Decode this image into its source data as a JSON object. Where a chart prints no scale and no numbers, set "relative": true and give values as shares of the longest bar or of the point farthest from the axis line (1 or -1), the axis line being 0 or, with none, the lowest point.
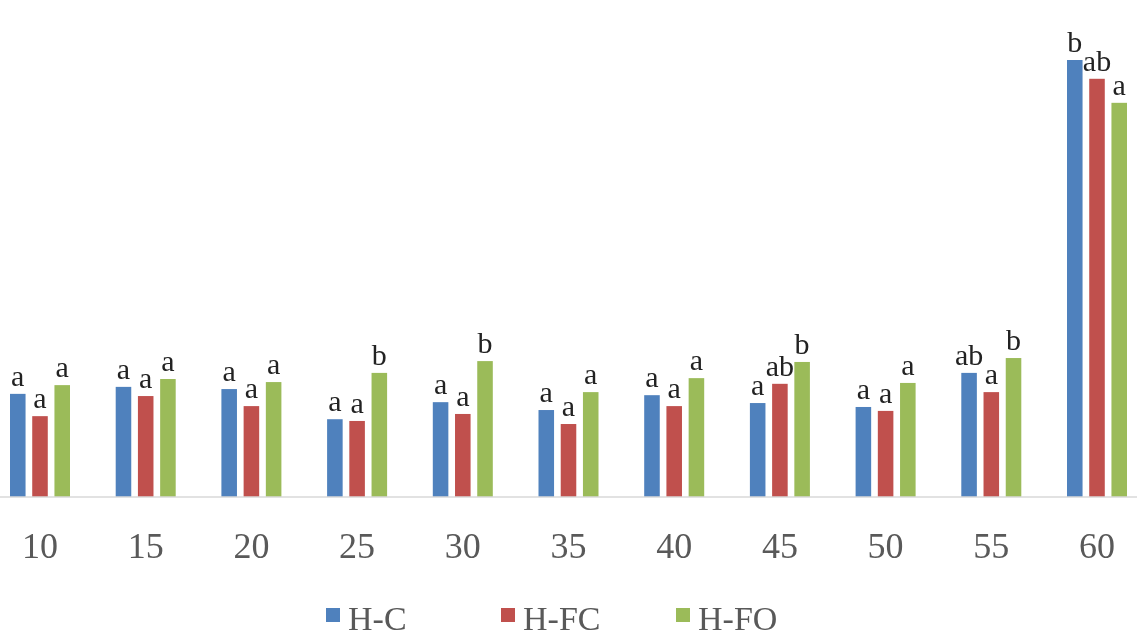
{
  "chart_data": {
    "type": "bar",
    "relative": true,
    "categories": [
      "10",
      "15",
      "20",
      "25",
      "30",
      "35",
      "40",
      "45",
      "50",
      "55",
      "60"
    ],
    "legend": "bottom",
    "series": [
      {
        "name": "H-C",
        "color": "#4f81bd",
        "values": [
          0.236,
          0.252,
          0.247,
          0.178,
          0.217,
          0.199,
          0.233,
          0.215,
          0.206,
          0.284,
          1
        ]
      },
      {
        "name": "H-FC",
        "color": "#c0504d",
        "values": [
          0.185,
          0.231,
          0.208,
          0.174,
          0.19,
          0.167,
          0.208,
          0.259,
          0.197,
          0.24,
          0.957
        ]
      },
      {
        "name": "H-FO",
        "color": "#9bbb59",
        "values": [
          0.256,
          0.27,
          0.263,
          0.284,
          0.311,
          0.24,
          0.272,
          0.309,
          0.261,
          0.318,
          0.902
        ]
      }
    ],
    "annotations": [
      "a",
      "a",
      "a",
      "a",
      "a",
      "a",
      "a",
      "a",
      "a",
      "a",
      "a",
      "b",
      "a",
      "a",
      "b",
      "a",
      "a",
      "a",
      "a",
      "a",
      "a",
      "a",
      "ab",
      "b",
      "a",
      "a",
      "a",
      "ab",
      "a",
      "b",
      "b",
      "ab",
      "a"
    ]
  }
}
